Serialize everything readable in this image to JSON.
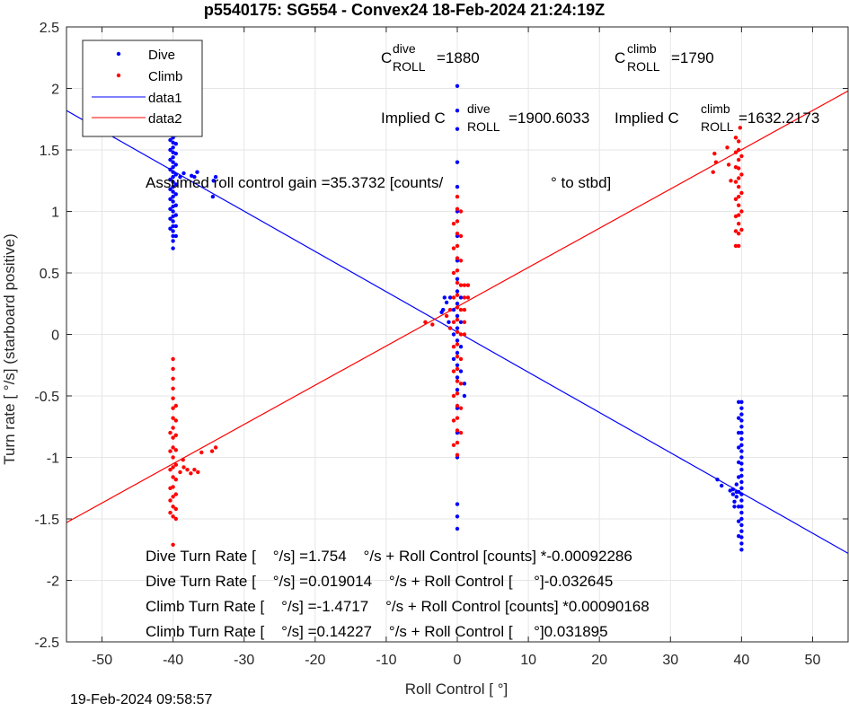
{
  "title": "p5540175: SG554 - Convex24 18-Feb-2024 21:24:19Z",
  "footer_timestamp": "19-Feb-2024 09:58:57",
  "colors": {
    "dive": "#0000ff",
    "climb": "#ff0000",
    "grid": "#e6e6e6",
    "axis": "#262626"
  },
  "chart_data": {
    "type": "scatter",
    "xlabel": "Roll Control [   °]",
    "ylabel": "Turn rate [   °/s] (starboard positive)",
    "xlim": [
      -55,
      55
    ],
    "ylim": [
      -2.5,
      2.5
    ],
    "xticks": [
      -50,
      -40,
      -30,
      -20,
      -10,
      0,
      10,
      20,
      30,
      40,
      50
    ],
    "yticks": [
      -2.5,
      -2,
      -1.5,
      -1,
      -0.5,
      0,
      0.5,
      1,
      1.5,
      2,
      2.5
    ],
    "grid": true,
    "legend_placement": "top-left",
    "legend": [
      "Dive",
      "Climb",
      "data1",
      "data2"
    ],
    "series": [
      {
        "name": "Dive",
        "kind": "points",
        "color": "#0000ff",
        "points": [
          [
            -40,
            1.72
          ],
          [
            -40,
            1.68
          ],
          [
            -40,
            1.64
          ],
          [
            -40,
            1.6
          ],
          [
            -40,
            1.56
          ],
          [
            -40,
            1.52
          ],
          [
            -40,
            1.48
          ],
          [
            -40,
            1.44
          ],
          [
            -40,
            1.4
          ],
          [
            -40,
            1.36
          ],
          [
            -40,
            1.32
          ],
          [
            -40,
            1.28
          ],
          [
            -40,
            1.24
          ],
          [
            -40,
            1.2
          ],
          [
            -40,
            1.16
          ],
          [
            -40,
            1.12
          ],
          [
            -40,
            1.08
          ],
          [
            -40,
            1.04
          ],
          [
            -40,
            1.0
          ],
          [
            -40,
            0.96
          ],
          [
            -40,
            0.92
          ],
          [
            -40,
            0.88
          ],
          [
            -40,
            0.84
          ],
          [
            -40,
            0.8
          ],
          [
            -40,
            0.76
          ],
          [
            -40,
            0.7
          ],
          [
            -39.6,
            1.7
          ],
          [
            -39.6,
            1.62
          ],
          [
            -39.6,
            1.55
          ],
          [
            -39.6,
            1.47
          ],
          [
            -39.6,
            1.38
          ],
          [
            -39.6,
            1.3
          ],
          [
            -39.6,
            1.22
          ],
          [
            -39.6,
            1.14
          ],
          [
            -39.6,
            1.05
          ],
          [
            -39.6,
            0.97
          ],
          [
            -39.6,
            0.88
          ],
          [
            -39.6,
            0.8
          ],
          [
            -40.4,
            1.66
          ],
          [
            -40.4,
            1.58
          ],
          [
            -40.4,
            1.5
          ],
          [
            -40.4,
            1.42
          ],
          [
            -40.4,
            1.34
          ],
          [
            -40.4,
            1.26
          ],
          [
            -40.4,
            1.18
          ],
          [
            -40.4,
            1.1
          ],
          [
            -40.4,
            1.02
          ],
          [
            -40.4,
            0.94
          ],
          [
            -40.4,
            0.86
          ],
          [
            -39.0,
            1.28
          ],
          [
            -38.5,
            1.31
          ],
          [
            -37.4,
            1.29
          ],
          [
            -37.0,
            1.28
          ],
          [
            -36.6,
            1.32
          ],
          [
            -34.3,
            1.25
          ],
          [
            -34.0,
            1.28
          ],
          [
            -34.4,
            1.12
          ],
          [
            0,
            2.02
          ],
          [
            0,
            1.82
          ],
          [
            0,
            1.67
          ],
          [
            0,
            1.4
          ],
          [
            0,
            1.2
          ],
          [
            0,
            1.0
          ],
          [
            0,
            0.8
          ],
          [
            0,
            0.6
          ],
          [
            0,
            0.45
          ],
          [
            0,
            0.35
          ],
          [
            0,
            0.25
          ],
          [
            0,
            0.15
          ],
          [
            0,
            0.05
          ],
          [
            0,
            -0.05
          ],
          [
            0,
            -0.15
          ],
          [
            0,
            -0.25
          ],
          [
            0,
            -0.35
          ],
          [
            0,
            -0.45
          ],
          [
            0,
            -0.6
          ],
          [
            0,
            -0.8
          ],
          [
            0,
            -1.0
          ],
          [
            0,
            -1.38
          ],
          [
            0,
            -1.48
          ],
          [
            0,
            -1.58
          ],
          [
            0.5,
            0.3
          ],
          [
            0.5,
            0.1
          ],
          [
            0.5,
            -0.1
          ],
          [
            0.5,
            -0.3
          ],
          [
            -0.5,
            0.2
          ],
          [
            -0.5,
            0.0
          ],
          [
            -0.5,
            -0.2
          ],
          [
            1,
            -0.4
          ],
          [
            1,
            -0.5
          ],
          [
            -1,
            0.3
          ],
          [
            -1.5,
            0.26
          ],
          [
            -1.8,
            0.3
          ],
          [
            -2,
            0.2
          ],
          [
            -2.2,
            0.18
          ],
          [
            -1.2,
            0.1
          ],
          [
            40,
            -0.55
          ],
          [
            40,
            -0.6
          ],
          [
            40,
            -0.65
          ],
          [
            40,
            -0.7
          ],
          [
            40,
            -0.75
          ],
          [
            40,
            -0.8
          ],
          [
            40,
            -0.85
          ],
          [
            40,
            -0.9
          ],
          [
            40,
            -0.95
          ],
          [
            40,
            -1.0
          ],
          [
            40,
            -1.05
          ],
          [
            40,
            -1.1
          ],
          [
            40,
            -1.15
          ],
          [
            40,
            -1.2
          ],
          [
            40,
            -1.25
          ],
          [
            40,
            -1.3
          ],
          [
            40,
            -1.35
          ],
          [
            40,
            -1.4
          ],
          [
            40,
            -1.45
          ],
          [
            40,
            -1.5
          ],
          [
            40,
            -1.55
          ],
          [
            40,
            -1.6
          ],
          [
            40,
            -1.65
          ],
          [
            40,
            -1.7
          ],
          [
            40,
            -1.75
          ],
          [
            39.6,
            -0.55
          ],
          [
            39.6,
            -0.68
          ],
          [
            39.6,
            -0.8
          ],
          [
            39.6,
            -0.92
          ],
          [
            39.6,
            -1.04
          ],
          [
            39.6,
            -1.16
          ],
          [
            39.6,
            -1.28
          ],
          [
            39.6,
            -1.4
          ],
          [
            39.6,
            -1.52
          ],
          [
            39.6,
            -1.64
          ],
          [
            39.3,
            -1.22
          ],
          [
            39.3,
            -1.28
          ],
          [
            39.3,
            -1.32
          ],
          [
            38.8,
            -1.26
          ],
          [
            38.8,
            -1.3
          ],
          [
            38.4,
            -1.27
          ],
          [
            37.2,
            -1.23
          ],
          [
            36.6,
            -1.18
          ],
          [
            39.0,
            -1.4
          ],
          [
            39.0,
            -1.36
          ]
        ]
      },
      {
        "name": "Climb",
        "kind": "points",
        "color": "#ff0000",
        "points": [
          [
            -40,
            -0.2
          ],
          [
            -40,
            -0.28
          ],
          [
            -40,
            -0.36
          ],
          [
            -40,
            -0.44
          ],
          [
            -40,
            -0.52
          ],
          [
            -40,
            -0.6
          ],
          [
            -40,
            -0.68
          ],
          [
            -40,
            -0.76
          ],
          [
            -40,
            -0.84
          ],
          [
            -40,
            -0.92
          ],
          [
            -40,
            -1.0
          ],
          [
            -40,
            -1.08
          ],
          [
            -40,
            -1.16
          ],
          [
            -40,
            -1.24
          ],
          [
            -40,
            -1.32
          ],
          [
            -40,
            -1.4
          ],
          [
            -40,
            -1.48
          ],
          [
            -40,
            -1.71
          ],
          [
            -39.6,
            -0.58
          ],
          [
            -39.6,
            -0.7
          ],
          [
            -39.6,
            -0.82
          ],
          [
            -39.6,
            -0.94
          ],
          [
            -39.6,
            -1.06
          ],
          [
            -39.6,
            -1.18
          ],
          [
            -39.6,
            -1.3
          ],
          [
            -39.6,
            -1.42
          ],
          [
            -39.6,
            -1.5
          ],
          [
            -40.4,
            -0.8
          ],
          [
            -40.4,
            -0.95
          ],
          [
            -40.4,
            -1.1
          ],
          [
            -40.4,
            -1.25
          ],
          [
            -40.4,
            -1.35
          ],
          [
            -40.4,
            -1.45
          ],
          [
            -39.0,
            -1.12
          ],
          [
            -38.5,
            -1.08
          ],
          [
            -38.0,
            -1.1
          ],
          [
            -37.5,
            -1.13
          ],
          [
            -37.0,
            -1.1
          ],
          [
            -36.5,
            -1.12
          ],
          [
            -36.0,
            -0.96
          ],
          [
            -34.5,
            -0.95
          ],
          [
            -34.0,
            -0.92
          ],
          [
            -38.6,
            -1.02
          ],
          [
            0,
            1.12
          ],
          [
            0,
            1.02
          ],
          [
            0,
            0.92
          ],
          [
            0,
            0.82
          ],
          [
            0,
            0.72
          ],
          [
            0,
            0.62
          ],
          [
            0,
            0.52
          ],
          [
            0,
            0.42
          ],
          [
            0,
            0.32
          ],
          [
            0,
            0.22
          ],
          [
            0,
            0.12
          ],
          [
            0,
            0.02
          ],
          [
            0,
            -0.08
          ],
          [
            0,
            -0.18
          ],
          [
            0,
            -0.28
          ],
          [
            0,
            -0.38
          ],
          [
            0,
            -0.48
          ],
          [
            0,
            -0.58
          ],
          [
            0,
            -0.68
          ],
          [
            0,
            -0.78
          ],
          [
            0,
            -0.88
          ],
          [
            0,
            -0.98
          ],
          [
            0.5,
            1.0
          ],
          [
            0.5,
            0.8
          ],
          [
            0.5,
            0.6
          ],
          [
            0.5,
            0.4
          ],
          [
            0.5,
            0.2
          ],
          [
            0.5,
            0.0
          ],
          [
            0.5,
            -0.2
          ],
          [
            0.5,
            -0.4
          ],
          [
            0.5,
            -0.6
          ],
          [
            0.5,
            -0.8
          ],
          [
            -0.5,
            0.9
          ],
          [
            -0.5,
            0.7
          ],
          [
            -0.5,
            0.5
          ],
          [
            -0.5,
            0.3
          ],
          [
            -0.5,
            0.1
          ],
          [
            -0.5,
            -0.1
          ],
          [
            -0.5,
            -0.3
          ],
          [
            -0.5,
            -0.5
          ],
          [
            -0.5,
            -0.7
          ],
          [
            -0.5,
            -0.9
          ],
          [
            1,
            0.4
          ],
          [
            1,
            0.3
          ],
          [
            1,
            0.2
          ],
          [
            1,
            0.1
          ],
          [
            1,
            0.0
          ],
          [
            1.5,
            0.3
          ],
          [
            1.5,
            0.4
          ],
          [
            -1,
            0.2
          ],
          [
            -1,
            0.05
          ],
          [
            -1.5,
            0.15
          ],
          [
            -3.5,
            0.08
          ],
          [
            -4.5,
            0.1
          ],
          [
            39.6,
            1.57
          ],
          [
            39.6,
            1.5
          ],
          [
            39.6,
            1.42
          ],
          [
            39.6,
            1.35
          ],
          [
            39.6,
            1.27
          ],
          [
            39.6,
            1.2
          ],
          [
            39.6,
            1.12
          ],
          [
            39.6,
            1.05
          ],
          [
            39.6,
            0.97
          ],
          [
            39.6,
            0.9
          ],
          [
            39.6,
            0.82
          ],
          [
            39.6,
            0.72
          ],
          [
            39.2,
            1.6
          ],
          [
            39.2,
            1.48
          ],
          [
            39.2,
            1.36
          ],
          [
            39.2,
            1.24
          ],
          [
            39.2,
            1.1
          ],
          [
            39.2,
            0.96
          ],
          [
            39.2,
            0.84
          ],
          [
            39.2,
            0.72
          ],
          [
            40,
            1.45
          ],
          [
            40,
            1.3
          ],
          [
            40,
            1.15
          ],
          [
            40,
            1.0
          ],
          [
            40,
            0.85
          ],
          [
            36.2,
            1.47
          ],
          [
            36.4,
            1.4
          ],
          [
            36.0,
            1.32
          ],
          [
            38.5,
            1.25
          ],
          [
            38.2,
            1.38
          ],
          [
            38.0,
            1.52
          ],
          [
            39.8,
            1.68
          ]
        ]
      },
      {
        "name": "data1",
        "kind": "line",
        "color": "#0000ff",
        "x": [
          -55,
          55
        ],
        "y": [
          1.82,
          -1.78
        ]
      },
      {
        "name": "data2",
        "kind": "line",
        "color": "#ff0000",
        "x": [
          -55,
          55
        ],
        "y": [
          -1.53,
          1.98
        ]
      }
    ]
  },
  "annotations": {
    "c_dive": {
      "main": "C",
      "sup": "dive",
      "sub": "ROLL",
      "value": "=1880"
    },
    "c_climb": {
      "main": "C",
      "sup": "climb",
      "sub": "ROLL",
      "value": "=1790"
    },
    "implied_dive": {
      "prefix": "Implied C",
      "sup": "dive",
      "sub": "ROLL",
      "value": "=1900.6033"
    },
    "implied_climb": {
      "prefix": "Implied C",
      "sup": "climb",
      "sub": "ROLL",
      "value": "=1632.2173"
    },
    "gain": {
      "text": "Assumed roll control gain =35.3732 [counts/",
      "suffix": "° to stbd]"
    },
    "fit_lines": [
      "Dive Turn Rate [    °/s] =1.754    °/s + Roll Control [counts] *-0.00092286",
      "Dive Turn Rate [    °/s] =0.019014    °/s + Roll Control [     °]-0.032645",
      "Climb Turn Rate [    °/s] =-1.4717    °/s + Roll Control [counts] *0.00090168",
      "Climb Turn Rate [    °/s] =0.14227    °/s + Roll Control [     °]0.031895"
    ]
  }
}
